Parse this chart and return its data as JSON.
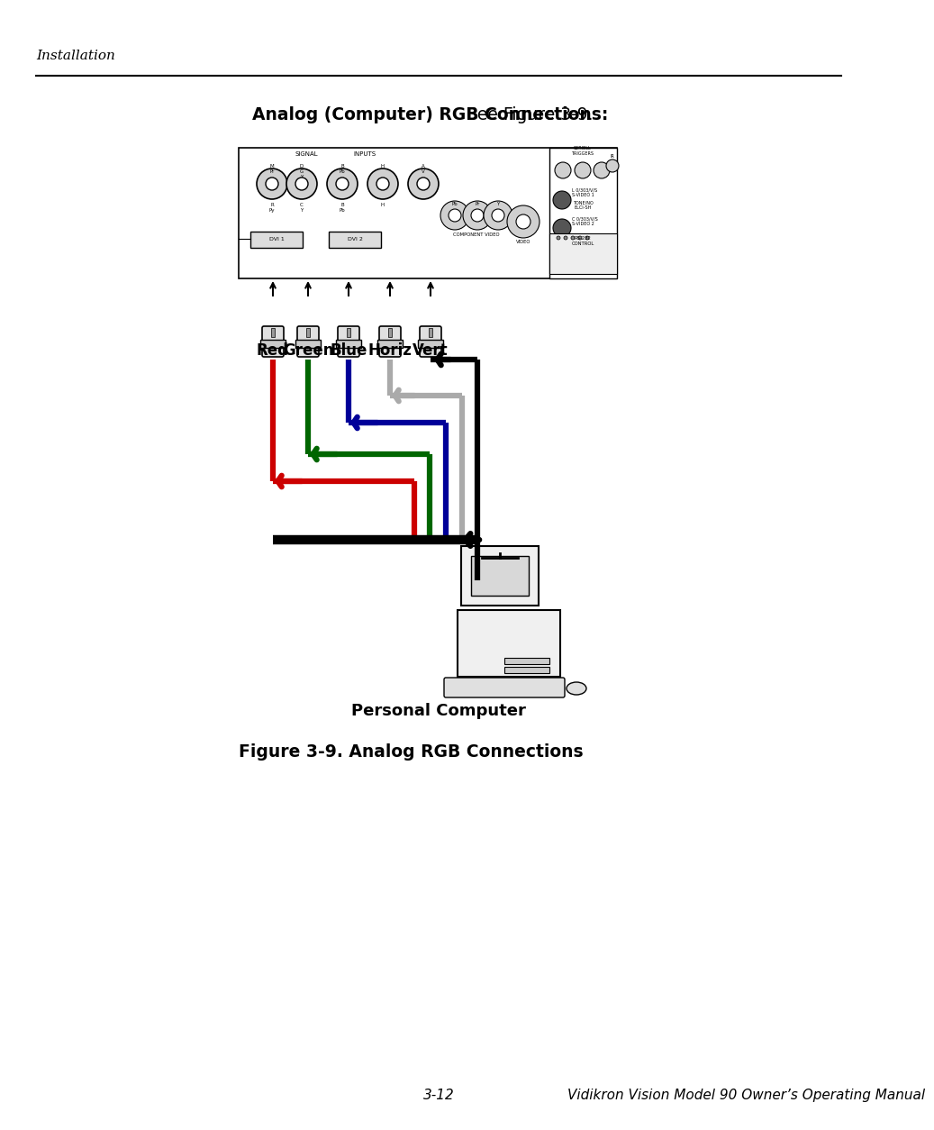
{
  "page_title": "Installation",
  "section_title_bold": "Analog (Computer) RGB Connections:",
  "section_title_normal": " See Figure 3-9.",
  "figure_caption": "Figure 3-9. Analog RGB Connections",
  "footer_left": "3-12",
  "footer_right": "Vidikron Vision Model 90 Owner’s Operating Manual",
  "background_color": "#ffffff",
  "connector_labels": [
    "Red",
    "Green",
    "Blue",
    "Horiz",
    "Vert"
  ],
  "pc_label": "Personal Computer",
  "line_colors": {
    "red": "#cc0000",
    "green": "#006600",
    "blue": "#000099",
    "horiz": "#aaaaaa",
    "vert": "#000000",
    "black": "#000000"
  },
  "lw": 4.5
}
